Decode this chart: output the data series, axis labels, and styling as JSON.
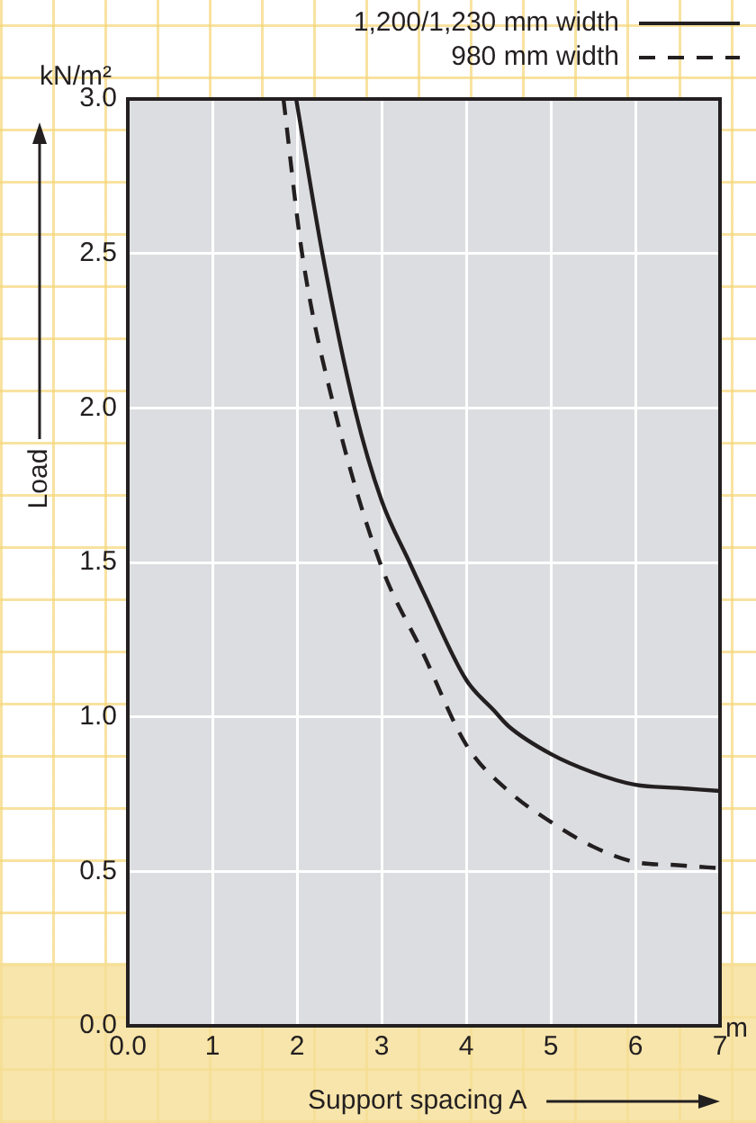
{
  "chart_data": {
    "type": "line",
    "xlabel": "Support spacing A",
    "ylabel": "Load",
    "annotations": [
      "kN/m²",
      "m"
    ],
    "x": [
      1.99,
      2.3,
      2.68,
      3.0,
      3.33,
      3.5,
      4.0,
      4.33,
      4.5,
      5.0,
      5.5,
      6.0,
      6.5,
      7.0
    ],
    "series": [
      {
        "name": "1,200/1,230 mm width",
        "color": "#231f20",
        "line_style": "solid",
        "values": [
          3.0,
          2.5,
          2.0,
          1.7,
          1.5,
          1.4,
          1.12,
          1.02,
          0.97,
          0.88,
          0.82,
          0.78,
          0.77,
          0.76
        ]
      },
      {
        "name": "980 mm width",
        "color": "#231f20",
        "line_style": "dashed",
        "x": [
          1.84,
          2.06,
          2.44,
          2.98,
          3.5,
          4.0,
          4.5,
          5.0,
          5.5,
          6.0,
          6.5,
          7.0
        ],
        "values": [
          3.0,
          2.5,
          2.0,
          1.5,
          1.2,
          0.91,
          0.76,
          0.66,
          0.58,
          0.53,
          0.52,
          0.51
        ]
      }
    ],
    "xlim": [
      0,
      7
    ],
    "xticks": [
      {
        "value": 0,
        "label": "0.0"
      },
      1,
      2,
      3,
      4,
      5,
      6,
      7
    ],
    "ylim": [
      0,
      3
    ],
    "yticks": [
      {
        "value": 0,
        "label": "0.0"
      },
      0.5,
      {
        "value": 1,
        "label": "1.0"
      },
      1.5,
      {
        "value": 2,
        "label": "2.0"
      },
      2.5,
      {
        "value": 3,
        "label": "3.0"
      }
    ],
    "grid": true,
    "legend": "top right",
    "marker": "none"
  }
}
